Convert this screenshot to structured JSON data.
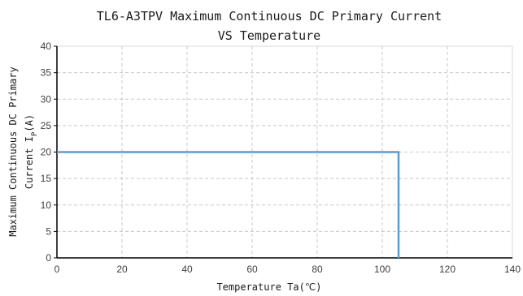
{
  "chart_data": {
    "type": "line",
    "title": [
      "TL6-A3TPV Maximum Continuous DC Primary Current",
      "VS Temperature"
    ],
    "xlabel": "Temperature Ta(℃)",
    "ylabel": {
      "line1": "Maximum Continuous DC Primary",
      "line2_prefix": "Current I",
      "line2_subscript": "P",
      "line2_suffix": "(A)"
    },
    "xlim": [
      0,
      140
    ],
    "ylim": [
      0,
      40
    ],
    "xticks": [
      0,
      20,
      40,
      60,
      80,
      100,
      120,
      140
    ],
    "yticks": [
      0,
      5,
      10,
      15,
      20,
      25,
      30,
      35,
      40
    ],
    "grid": true,
    "series": [
      {
        "color": "#5b9bd5",
        "x": [
          0,
          105,
          105
        ],
        "y": [
          20,
          20,
          0
        ]
      }
    ]
  }
}
